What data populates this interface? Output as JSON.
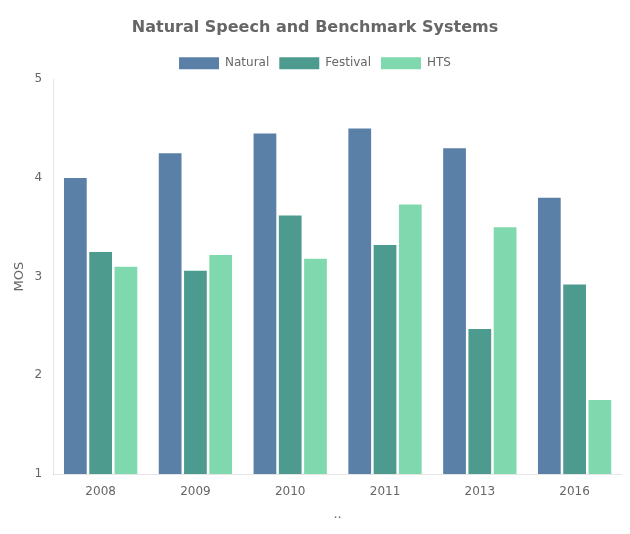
{
  "chart_data": {
    "type": "bar",
    "title": "Natural Speech and Benchmark Systems",
    "xlabel": "..",
    "ylabel": "MOS",
    "categories": [
      "2008",
      "2009",
      "2010",
      "2011",
      "2013",
      "2016"
    ],
    "series": [
      {
        "name": "Natural",
        "color": "#5b80a8",
        "values": [
          4.0,
          4.25,
          4.45,
          4.5,
          4.3,
          3.8
        ]
      },
      {
        "name": "Festival",
        "color": "#4d9b8f",
        "values": [
          3.25,
          3.06,
          3.62,
          3.32,
          2.47,
          2.92
        ]
      },
      {
        "name": "HTS",
        "color": "#80d9ae",
        "values": [
          3.1,
          3.22,
          3.18,
          3.73,
          3.5,
          1.75
        ]
      }
    ],
    "ylim": [
      1,
      5
    ],
    "yticks": [
      1,
      2,
      3,
      4,
      5
    ],
    "grid": false,
    "legend": "top"
  }
}
